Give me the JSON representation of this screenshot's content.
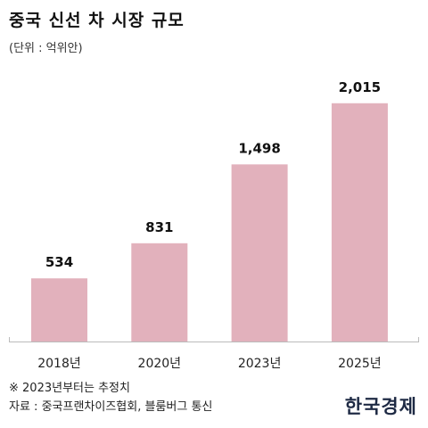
{
  "header": {
    "title": "중국 신선 차 시장 규모",
    "unit": "(단위 : 억위안)"
  },
  "chart_data": {
    "type": "bar",
    "categories": [
      "2018년",
      "2020년",
      "2023년",
      "2025년"
    ],
    "values": [
      534,
      831,
      1498,
      2015
    ],
    "value_labels": [
      "534",
      "831",
      "1,498",
      "2,015"
    ],
    "title": "중국 신선 차 시장 규모",
    "xlabel": "",
    "ylabel": "",
    "ylim": [
      0,
      2300
    ],
    "grid": false,
    "bar_color": "#e2b1bc"
  },
  "footer": {
    "note": "※ 2023년부터는 추정치",
    "source": "자료 : 중국프랜차이즈협회, 블룸버그 통신",
    "logo": "한국경제"
  }
}
